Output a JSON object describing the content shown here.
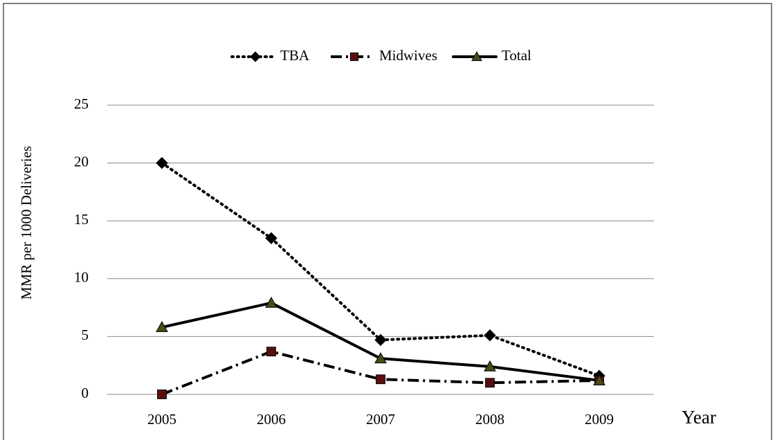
{
  "chart_data": {
    "type": "line",
    "y_label": "MMR per 1000 Deliveries",
    "x_label": "Year",
    "categories": [
      "2005",
      "2006",
      "2007",
      "2008",
      "2009"
    ],
    "series": [
      {
        "name": "TBA",
        "color": "#000000",
        "marker": "diamond",
        "marker_color": "#000000",
        "dash": "dotted",
        "values": [
          20,
          13.5,
          4.7,
          5.1,
          1.6
        ]
      },
      {
        "name": "Midwives",
        "color": "#000000",
        "marker": "square",
        "marker_color": "#5a1010",
        "dash": "dashdot",
        "values": [
          0,
          3.7,
          1.3,
          1.0,
          1.2
        ]
      },
      {
        "name": "Total",
        "color": "#000000",
        "marker": "triangle",
        "marker_color": "#4a4a1a",
        "dash": "solid",
        "values": [
          5.8,
          7.9,
          3.1,
          2.4,
          1.2
        ]
      }
    ],
    "ylim": [
      0,
      25
    ],
    "yticks": [
      0,
      5,
      10,
      15,
      20,
      25
    ],
    "grid": true,
    "legend": "top"
  }
}
